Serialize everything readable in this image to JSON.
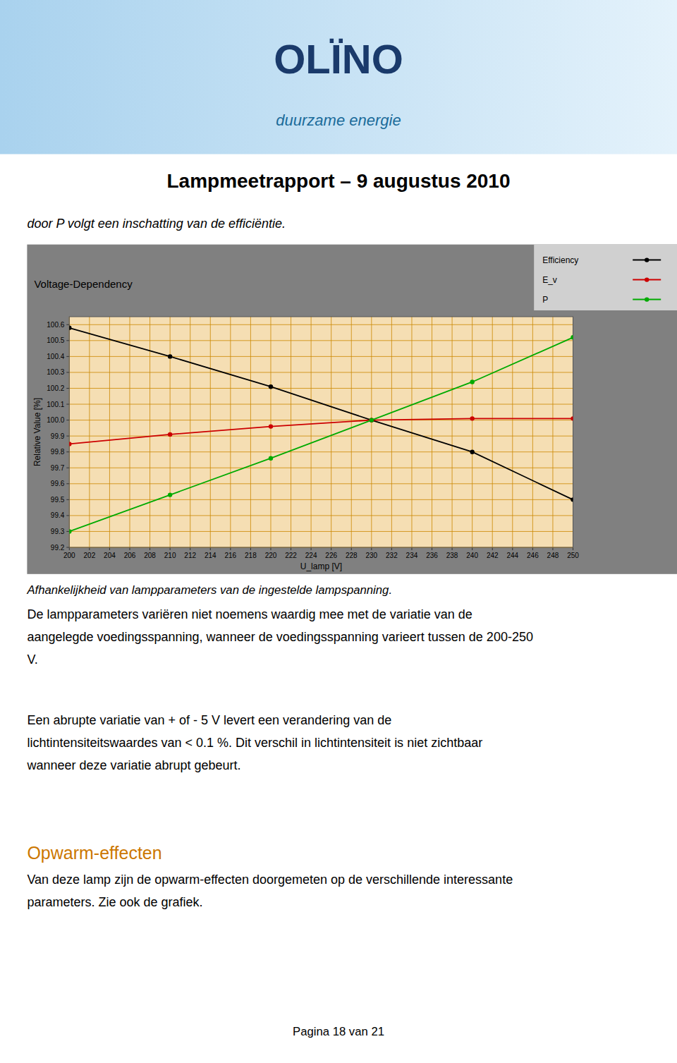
{
  "page": {
    "logo": "OLÏNO",
    "logo_subtitle": "duurzame energie",
    "title": "Lampmeetrapport – 9 augustus 2010",
    "intro": "door P volgt een inschatting van de efficiëntie.",
    "caption": "Afhankelijkheid van lampparameters van de ingestelde lampspanning.",
    "body_text1": "De lampparameters variëren niet noemens waardig mee met de variatie van de\naangelegde voedingsspanning, wanneer de voedingsspanning varieert tussen de 200-250\nV.",
    "body_text2": "Een abrupte variatie van + of - 5 V levert een verandering van de\nlichtintensiteitswaardes van < 0.1 %. Dit verschil in lichtintensiteit is niet zichtbaar\nwanneer deze variatie abrupt gebeurt.",
    "section_title": "Opwarm-effecten",
    "section_body": "Van deze lamp zijn de opwarm-effecten doorgemeten op de verschillende interessante\nparameters. Zie ook de grafiek.",
    "footer": "Pagina 18 van 21"
  },
  "chart_data": {
    "type": "line",
    "title": "Voltage-Dependency",
    "x_label": "U_lamp [V]",
    "y_label": "Relative Value [%]",
    "x": [
      200,
      210,
      220,
      230,
      240,
      250
    ],
    "series": [
      {
        "name": "Efficiency",
        "color": "#000000",
        "marker": "circle",
        "values": [
          100.58,
          100.4,
          100.21,
          100.0,
          99.8,
          99.5
        ]
      },
      {
        "name": "E_v",
        "color": "#cc0000",
        "marker": "circle",
        "values": [
          99.85,
          99.91,
          99.96,
          100.0,
          100.01,
          100.01
        ]
      },
      {
        "name": "P",
        "color": "#00aa00",
        "marker": "circle",
        "values": [
          99.3,
          99.53,
          99.76,
          100.0,
          100.24,
          100.52
        ]
      }
    ],
    "xlim": [
      200,
      250
    ],
    "ylim": [
      99.2,
      100.65
    ],
    "xticks": [
      200,
      202,
      204,
      206,
      208,
      210,
      212,
      214,
      216,
      218,
      220,
      222,
      224,
      226,
      228,
      230,
      232,
      234,
      236,
      238,
      240,
      242,
      244,
      246,
      248,
      250
    ],
    "yticks": [
      99.2,
      99.3,
      99.4,
      99.5,
      99.6,
      99.7,
      99.8,
      99.9,
      {
        "value": 100.0,
        "label": "100.0"
      },
      100.1,
      100.2,
      100.3,
      100.4,
      100.5,
      100.6
    ],
    "grid": true,
    "legend": "upper right"
  }
}
